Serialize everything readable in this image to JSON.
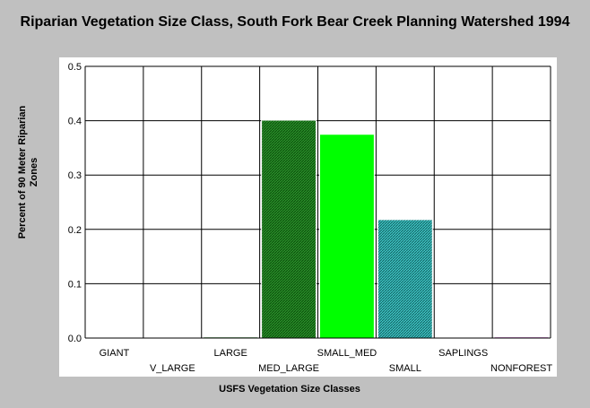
{
  "chart_data": {
    "type": "bar",
    "title": "Riparian Vegetation Size Class, South Fork Bear Creek Planning Watershed 1994",
    "xlabel": "USFS Vegetation Size Classes",
    "ylabel": "Percent of 90 Meter Riparian Zones",
    "ylim": [
      0,
      0.5
    ],
    "yticks": [
      "0.0",
      "0.1",
      "0.2",
      "0.3",
      "0.4",
      "0.5"
    ],
    "grid": true,
    "categories": [
      "GIANT",
      "V_LARGE",
      "LARGE",
      "MED_LARGE",
      "SMALL_MED",
      "SMALL",
      "SAPLINGS",
      "NONFOREST"
    ],
    "values": [
      0.0,
      0.0,
      0.002,
      0.401,
      0.375,
      0.218,
      0.0,
      0.002
    ],
    "colors": [
      "#00a000",
      "#00a000",
      "#007000",
      "#1a7a1a",
      "#00ff00",
      "#20a8a8",
      "#808000",
      "#a000a0"
    ]
  }
}
